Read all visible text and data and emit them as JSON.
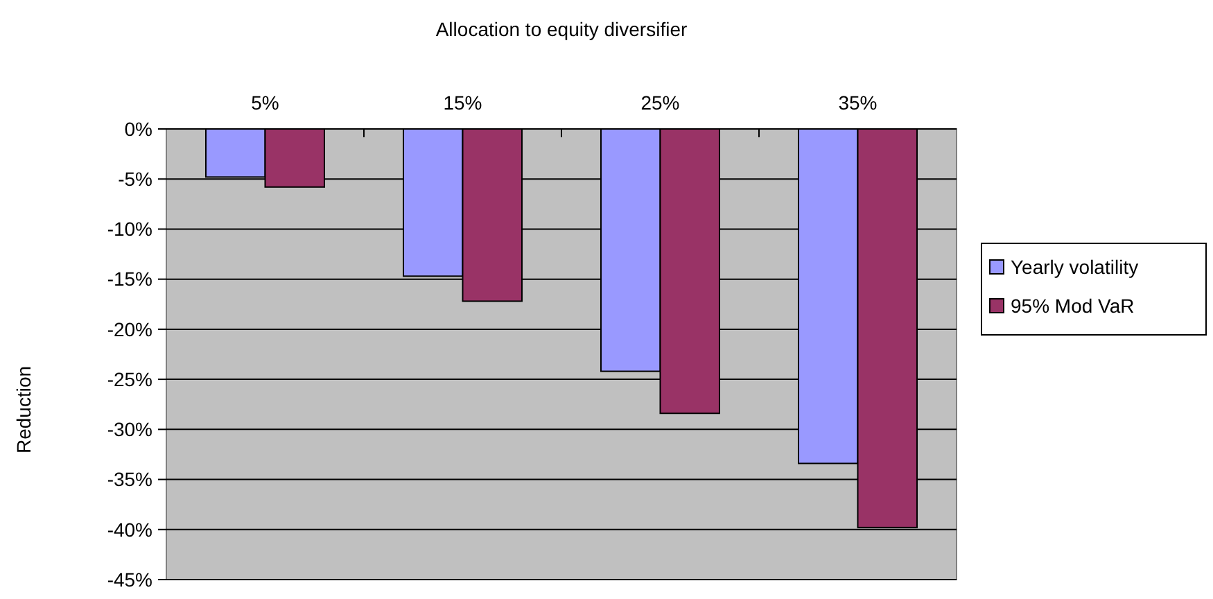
{
  "chart_data": {
    "type": "bar",
    "title": "Allocation to equity diversifier",
    "ylabel": "Reduction",
    "categories": [
      "5%",
      "15%",
      "25%",
      "35%"
    ],
    "series": [
      {
        "name": "Yearly volatility",
        "color": "#9999ff",
        "values": [
          -4.8,
          -14.7,
          -24.2,
          -33.4
        ]
      },
      {
        "name": "95% Mod VaR",
        "color": "#993366",
        "values": [
          -5.8,
          -17.2,
          -28.4,
          -39.8
        ]
      }
    ],
    "ylim": [
      -45,
      0
    ],
    "yticks": [
      {
        "value": 0,
        "label": "0%"
      },
      {
        "value": -5,
        "label": "-5%"
      },
      {
        "value": -10,
        "label": "-10%"
      },
      {
        "value": -15,
        "label": "-15%"
      },
      {
        "value": -20,
        "label": "-20%"
      },
      {
        "value": -25,
        "label": "-25%"
      },
      {
        "value": -30,
        "label": "-30%"
      },
      {
        "value": -35,
        "label": "-35%"
      },
      {
        "value": -40,
        "label": "-40%"
      },
      {
        "value": -45,
        "label": "-45%"
      }
    ],
    "grid": "y",
    "legend": "right"
  }
}
